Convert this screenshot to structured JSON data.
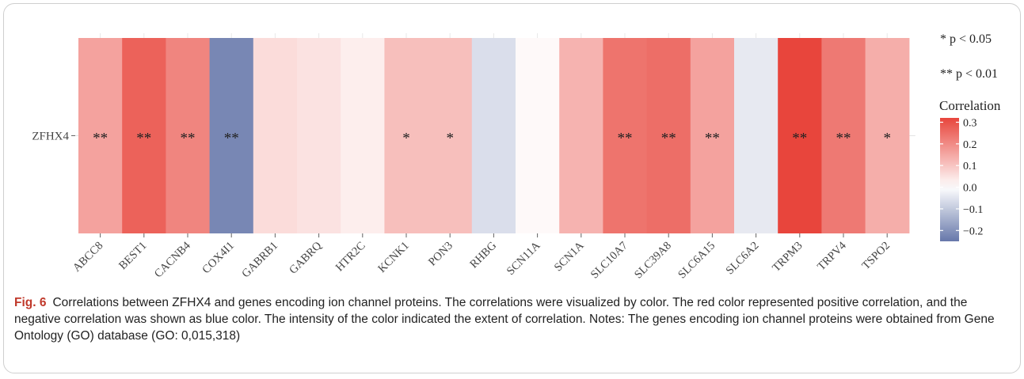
{
  "chart_data": {
    "type": "heatmap",
    "rows": [
      "ZFHX4"
    ],
    "columns": [
      "ABCC8",
      "BEST1",
      "CACNB4",
      "COX4I1",
      "GABRB1",
      "GABRQ",
      "HTR2C",
      "KCNK1",
      "PON3",
      "RHBG",
      "SCN11A",
      "SCN1A",
      "SLC10A7",
      "SLC39A8",
      "SLC6A15",
      "SLC6A2",
      "TRPM3",
      "TRPV4",
      "TSPO2"
    ],
    "values": [
      [
        0.16,
        0.27,
        0.21,
        -0.22,
        0.06,
        0.05,
        0.03,
        0.11,
        0.11,
        -0.06,
        0.01,
        0.13,
        0.24,
        0.25,
        0.16,
        -0.04,
        0.32,
        0.23,
        0.14
      ]
    ],
    "significance": [
      [
        "**",
        "**",
        "**",
        "**",
        "",
        "",
        "",
        "*",
        "*",
        "",
        "",
        "",
        "**",
        "**",
        "**",
        "",
        "**",
        "**",
        "*"
      ]
    ],
    "color_scale": {
      "min": -0.25,
      "mid": 0.0,
      "max": 0.32,
      "low_color": "#6677aa",
      "mid_color": "#ffffff",
      "high_color": "#e8453c"
    },
    "legend": {
      "notes": [
        "* p < 0.05",
        "** p < 0.01"
      ],
      "title": "Correlation",
      "ticks": [
        0.3,
        0.2,
        0.1,
        0.0,
        -0.1,
        -0.2
      ],
      "tick_labels": [
        "0.3",
        "0.2",
        "0.1",
        "0.0",
        "−0.1",
        "−0.2"
      ],
      "placement": "right"
    }
  },
  "caption": {
    "label": "Fig. 6",
    "text": "Correlations between ZFHX4 and genes encoding ion channel proteins. The correlations were visualized by color. The red color represented positive correlation, and the negative correlation was shown as blue color. The intensity of the color indicated the extent of correlation. Notes: The genes encoding ion channel proteins were obtained from Gene Ontology (GO) database (GO: 0,015,318)"
  }
}
